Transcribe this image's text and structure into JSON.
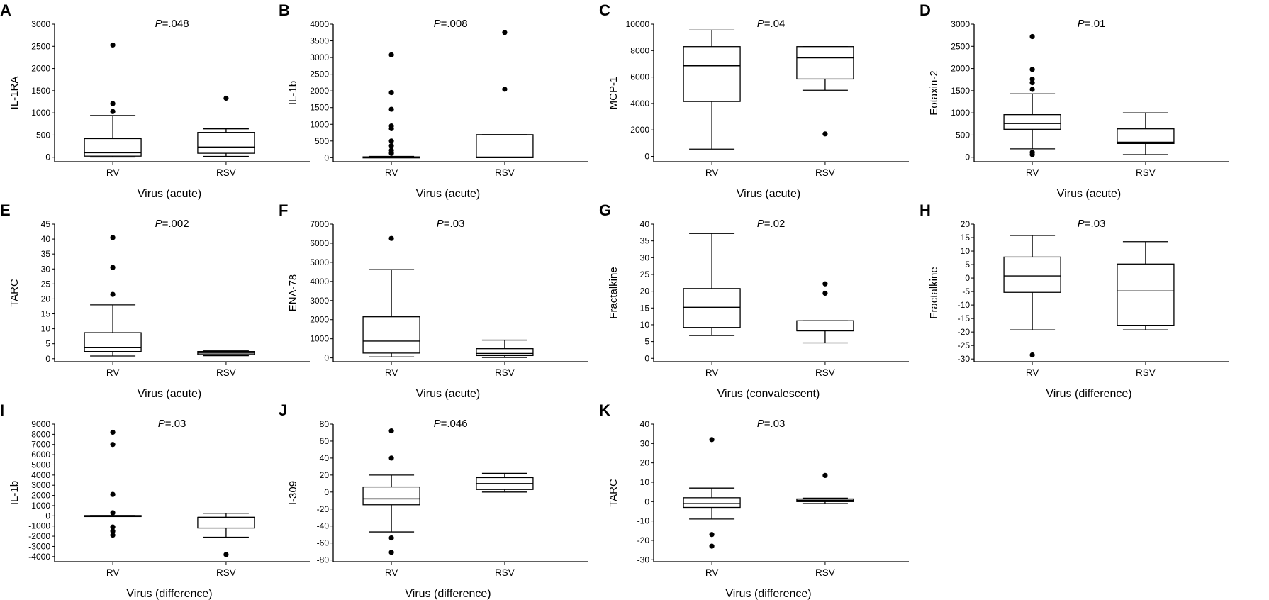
{
  "chart_data": [
    {
      "letter": "A",
      "type": "box",
      "title": "P=.048",
      "p_prefix": "P",
      "p_value": "=.048",
      "ylabel": "IL-1RA",
      "xlabel": "Virus (acute)",
      "ylim": [
        -100,
        3000
      ],
      "yticks": [
        0,
        500,
        1000,
        1500,
        2000,
        2500,
        3000
      ],
      "categories": [
        "RV",
        "RSV"
      ],
      "boxes": [
        {
          "category": "RV",
          "whisker_low": 5,
          "q1": 25,
          "median": 100,
          "q3": 420,
          "whisker_high": 940,
          "outliers": [
            1030,
            1210,
            2530
          ]
        },
        {
          "category": "RSV",
          "whisker_low": 20,
          "q1": 90,
          "median": 230,
          "q3": 560,
          "whisker_high": 640,
          "outliers": [
            1330
          ]
        }
      ]
    },
    {
      "letter": "B",
      "type": "box",
      "title": "P=.008",
      "p_prefix": "P",
      "p_value": "=.008",
      "ylabel": "IL-1b",
      "xlabel": "Virus (acute)",
      "ylim": [
        -120,
        4000
      ],
      "yticks": [
        0,
        500,
        1000,
        1500,
        2000,
        2500,
        3000,
        3500,
        4000
      ],
      "categories": [
        "RV",
        "RSV"
      ],
      "boxes": [
        {
          "category": "RV",
          "whisker_low": 0,
          "q1": 0,
          "median": 10,
          "q3": 25,
          "whisker_high": 40,
          "outliers": [
            130,
            220,
            360,
            500,
            870,
            950,
            1450,
            1950,
            3080
          ]
        },
        {
          "category": "RSV",
          "whisker_low": 0,
          "q1": 0,
          "median": 20,
          "q3": 690,
          "whisker_high": 690,
          "outliers": [
            2050,
            3750
          ]
        }
      ]
    },
    {
      "letter": "C",
      "type": "box",
      "title": "P=.04",
      "p_prefix": "P",
      "p_value": "=.04",
      "ylabel": "MCP-1",
      "xlabel": "Virus (acute)",
      "ylim": [
        -400,
        10000
      ],
      "yticks": [
        0,
        2000,
        4000,
        6000,
        8000,
        10000
      ],
      "categories": [
        "RV",
        "RSV"
      ],
      "boxes": [
        {
          "category": "RV",
          "whisker_low": 550,
          "q1": 4150,
          "median": 6850,
          "q3": 8300,
          "whisker_high": 9550,
          "outliers": []
        },
        {
          "category": "RSV",
          "whisker_low": 5000,
          "q1": 5850,
          "median": 7450,
          "q3": 8300,
          "whisker_high": 8300,
          "outliers": [
            1700
          ]
        }
      ]
    },
    {
      "letter": "D",
      "type": "box",
      "title": "P=.01",
      "p_prefix": "P",
      "p_value": "=.01",
      "ylabel": "Eotaxin-2",
      "xlabel": "Virus (acute)",
      "ylim": [
        -100,
        3000
      ],
      "yticks": [
        0,
        500,
        1000,
        1500,
        2000,
        2500,
        3000
      ],
      "categories": [
        "RV",
        "RSV"
      ],
      "boxes": [
        {
          "category": "RV",
          "whisker_low": 190,
          "q1": 630,
          "median": 760,
          "q3": 960,
          "whisker_high": 1430,
          "outliers": [
            60,
            110,
            1530,
            1680,
            1760,
            1980,
            2720
          ]
        },
        {
          "category": "RSV",
          "whisker_low": 60,
          "q1": 310,
          "median": 340,
          "q3": 640,
          "whisker_high": 1000,
          "outliers": []
        }
      ]
    },
    {
      "letter": "E",
      "type": "box",
      "title": "P=.002",
      "p_prefix": "P",
      "p_value": "=.002",
      "ylabel": "TARC",
      "xlabel": "Virus (acute)",
      "ylim": [
        -1,
        45
      ],
      "yticks": [
        0,
        5,
        10,
        15,
        20,
        25,
        30,
        35,
        40,
        45
      ],
      "categories": [
        "RV",
        "RSV"
      ],
      "boxes": [
        {
          "category": "RV",
          "whisker_low": 0.9,
          "q1": 2.4,
          "median": 3.8,
          "q3": 8.7,
          "whisker_high": 18,
          "outliers": [
            21.5,
            30.5,
            40.5
          ]
        },
        {
          "category": "RSV",
          "whisker_low": 1,
          "q1": 1.4,
          "median": 1.9,
          "q3": 2.4,
          "whisker_high": 2.6,
          "outliers": []
        }
      ]
    },
    {
      "letter": "F",
      "type": "box",
      "title": "P=.03",
      "p_prefix": "P",
      "p_value": "=.03",
      "ylabel": "ENA-78",
      "xlabel": "Virus (acute)",
      "ylim": [
        -200,
        7000
      ],
      "yticks": [
        0,
        1000,
        2000,
        3000,
        4000,
        5000,
        6000,
        7000
      ],
      "categories": [
        "RV",
        "RSV"
      ],
      "boxes": [
        {
          "category": "RV",
          "whisker_low": 50,
          "q1": 250,
          "median": 880,
          "q3": 2150,
          "whisker_high": 4620,
          "outliers": [
            6250
          ]
        },
        {
          "category": "RSV",
          "whisker_low": 20,
          "q1": 120,
          "median": 230,
          "q3": 480,
          "whisker_high": 930,
          "outliers": []
        }
      ]
    },
    {
      "letter": "G",
      "type": "box",
      "title": "P=.02",
      "p_prefix": "P",
      "p_value": "=.02",
      "ylabel": "Fractalkine",
      "xlabel": "Virus (convalescent)",
      "ylim": [
        -1,
        40
      ],
      "yticks": [
        0,
        5,
        10,
        15,
        20,
        25,
        30,
        35,
        40
      ],
      "categories": [
        "RV",
        "RSV"
      ],
      "boxes": [
        {
          "category": "RV",
          "whisker_low": 6.8,
          "q1": 9.2,
          "median": 15.2,
          "q3": 20.8,
          "whisker_high": 37.2,
          "outliers": []
        },
        {
          "category": "RSV",
          "whisker_low": 4.6,
          "q1": 8.2,
          "median": 8.2,
          "q3": 11.2,
          "whisker_high": 11.2,
          "outliers": [
            19.4,
            22.2
          ]
        }
      ]
    },
    {
      "letter": "H",
      "type": "box",
      "title": "P=.03",
      "p_prefix": "P",
      "p_value": "=.03",
      "ylabel": "Fractalkine",
      "xlabel": "Virus (difference)",
      "ylim": [
        -31,
        20
      ],
      "yticks": [
        -30,
        -25,
        -20,
        -15,
        -10,
        -5,
        0,
        5,
        10,
        15,
        20
      ],
      "categories": [
        "RV",
        "RSV"
      ],
      "boxes": [
        {
          "category": "RV",
          "whisker_low": -19.2,
          "q1": -5.3,
          "median": 0.8,
          "q3": 7.8,
          "whisker_high": 15.8,
          "outliers": [
            -28.5
          ]
        },
        {
          "category": "RSV",
          "whisker_low": -19.2,
          "q1": -17.5,
          "median": -4.8,
          "q3": 5.2,
          "whisker_high": 13.5,
          "outliers": []
        }
      ]
    },
    {
      "letter": "I",
      "type": "box",
      "title": "P=.03",
      "p_prefix": "P",
      "p_value": "=.03",
      "ylabel": "IL-1b",
      "xlabel": "Virus (difference)",
      "ylim": [
        -4500,
        9000
      ],
      "yticks": [
        -4000,
        -3000,
        -2000,
        -1000,
        0,
        1000,
        2000,
        3000,
        4000,
        5000,
        6000,
        7000,
        8000,
        9000
      ],
      "categories": [
        "RV",
        "RSV"
      ],
      "boxes": [
        {
          "category": "RV",
          "whisker_low": -30,
          "q1": -30,
          "median": 0,
          "q3": 30,
          "whisker_high": 30,
          "outliers": [
            -1900,
            -1500,
            -1100,
            300,
            2100,
            7000,
            8200
          ]
        },
        {
          "category": "RSV",
          "whisker_low": -2100,
          "q1": -1200,
          "median": -150,
          "q3": -150,
          "whisker_high": 250,
          "outliers": [
            -3800
          ]
        }
      ]
    },
    {
      "letter": "J",
      "type": "box",
      "title": "P=.046",
      "p_prefix": "P",
      "p_value": "=.046",
      "ylabel": "I-309",
      "xlabel": "Virus (difference)",
      "ylim": [
        -82,
        80
      ],
      "yticks": [
        -80,
        -60,
        -40,
        -20,
        0,
        20,
        40,
        60,
        80
      ],
      "categories": [
        "RV",
        "RSV"
      ],
      "boxes": [
        {
          "category": "RV",
          "whisker_low": -47,
          "q1": -15,
          "median": -8,
          "q3": 6,
          "whisker_high": 20,
          "outliers": [
            -71,
            -54,
            40,
            72
          ]
        },
        {
          "category": "RSV",
          "whisker_low": 0,
          "q1": 3,
          "median": 10,
          "q3": 17,
          "whisker_high": 22,
          "outliers": []
        }
      ]
    },
    {
      "letter": "K",
      "type": "box",
      "title": "P=.03",
      "p_prefix": "P",
      "p_value": "=.03",
      "ylabel": "TARC",
      "xlabel": "Virus (difference)",
      "ylim": [
        -31,
        40
      ],
      "yticks": [
        -30,
        -20,
        -10,
        0,
        10,
        20,
        30,
        40
      ],
      "categories": [
        "RV",
        "RSV"
      ],
      "boxes": [
        {
          "category": "RV",
          "whisker_low": -9,
          "q1": -3,
          "median": -1,
          "q3": 2,
          "whisker_high": 7,
          "outliers": [
            -23,
            -17,
            32
          ]
        },
        {
          "category": "RSV",
          "whisker_low": -1,
          "q1": 0,
          "median": 0.7,
          "q3": 1.4,
          "whisker_high": 1.8,
          "outliers": [
            13.5
          ]
        }
      ]
    }
  ]
}
